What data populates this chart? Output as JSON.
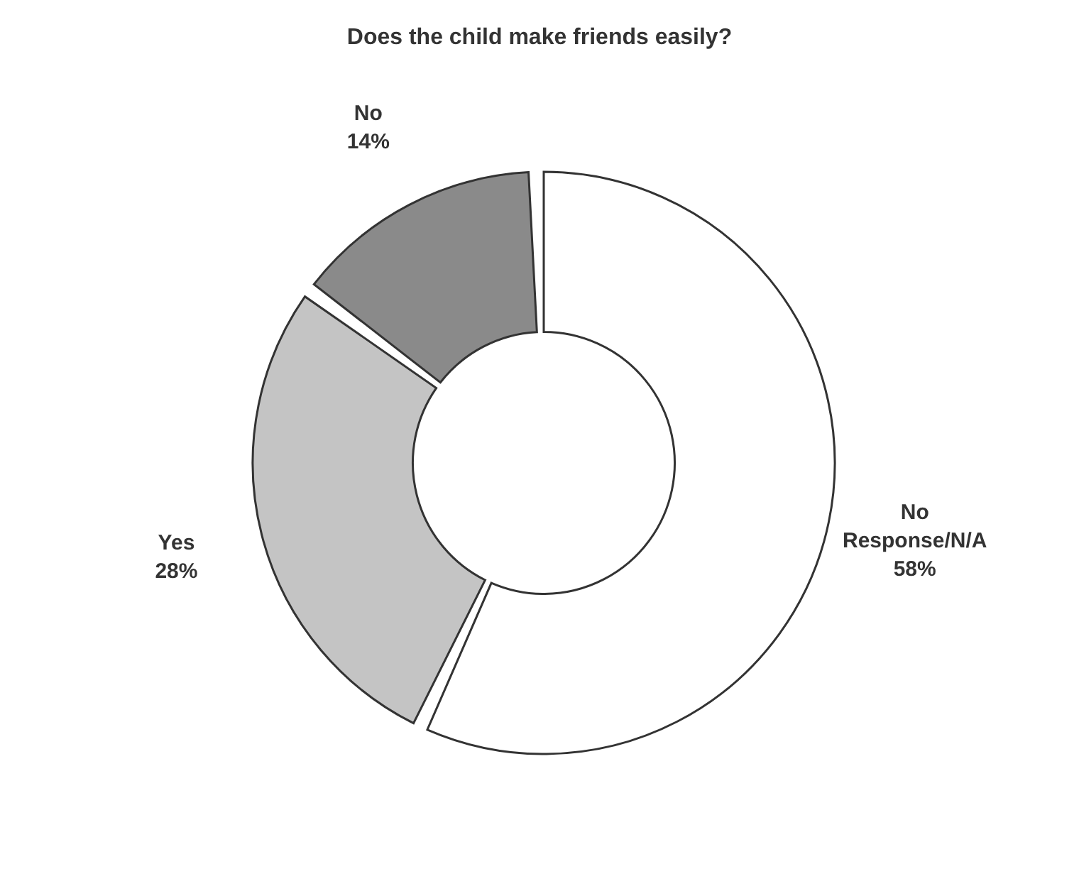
{
  "chart_data": {
    "type": "donut",
    "title": "Does the child make friends easily?",
    "categories": [
      "No Response/N/A",
      "Yes",
      "No"
    ],
    "values": [
      58,
      28,
      14
    ],
    "value_labels": [
      "58%",
      "28%",
      "14%"
    ],
    "colors": [
      "#ffffff",
      "#c4c4c4",
      "#8a8a8a"
    ]
  }
}
